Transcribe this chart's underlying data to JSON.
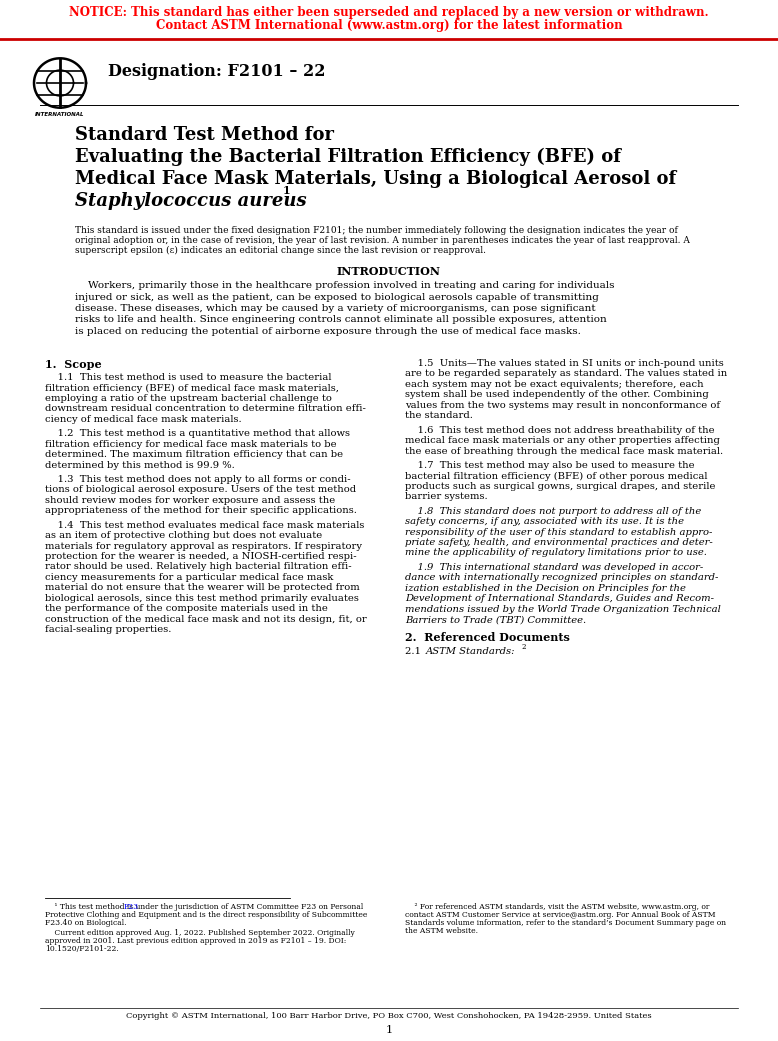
{
  "notice_line1": "NOTICE: This standard has either been superseded and replaced by a new version or withdrawn.",
  "notice_line2": "Contact ASTM International (www.astm.org) for the latest information",
  "notice_color": "#FF0000",
  "designation": "Designation: F2101 – 22",
  "title_line1": "Standard Test Method for",
  "title_line2": "Evaluating the Bacterial Filtration Efficiency (BFE) of",
  "title_line3": "Medical Face Mask Materials, Using a Biological Aerosol of",
  "title_line4_italic": "Staphylococcus aureus",
  "title_line4_super": "1",
  "preamble": "This standard is issued under the fixed designation F2101; the number immediately following the designation indicates the year of\noriginal adoption or, in the case of revision, the year of last revision. A number in parentheses indicates the year of last reapproval. A\nsuperscript epsilon (ε) indicates an editorial change since the last revision or reapproval.",
  "intro_heading": "INTRODUCTION",
  "intro_text": "    Workers, primarily those in the healthcare profession involved in treating and caring for individuals\ninjured or sick, as well as the patient, can be exposed to biological aerosols capable of transmitting\ndisease. These diseases, which may be caused by a variety of microorganisms, can pose significant\nrisks to life and health. Since engineering controls cannot eliminate all possible exposures, attention\nis placed on reducing the potential of airborne exposure through the use of medical face masks.",
  "col1_heading": "1.  Scope",
  "col1_p1": "    1.1  This test method is used to measure the bacterial\nfiltration efficiency (BFE) of medical face mask materials,\nemploying a ratio of the upstream bacterial challenge to\ndownstream residual concentration to determine filtration effi-\nciency of medical face mask materials.",
  "col1_p2": "    1.2  This test method is a quantitative method that allows\nfiltration efficiency for medical face mask materials to be\ndetermined. The maximum filtration efficiency that can be\ndetermined by this method is 99.9 %.",
  "col1_p3": "    1.3  This test method does not apply to all forms or condi-\ntions of biological aerosol exposure. Users of the test method\nshould review modes for worker exposure and assess the\nappropriateness of the method for their specific applications.",
  "col1_p4": "    1.4  This test method evaluates medical face mask materials\nas an item of protective clothing but does not evaluate\nmaterials for regulatory approval as respirators. If respiratory\nprotection for the wearer is needed, a NIOSH-certified respi-\nrator should be used. Relatively high bacterial filtration effi-\nciency measurements for a particular medical face mask\nmaterial do not ensure that the wearer will be protected from\nbiological aerosols, since this test method primarily evaluates\nthe performance of the composite materials used in the\nconstruction of the medical face mask and not its design, fit, or\nfacial-sealing properties.",
  "col2_p5": "    1.5  Units—The values stated in SI units or inch-pound units\nare to be regarded separately as standard. The values stated in\neach system may not be exact equivalents; therefore, each\nsystem shall be used independently of the other. Combining\nvalues from the two systems may result in nonconformance of\nthe standard.",
  "col2_p6": "    1.6  This test method does not address breathability of the\nmedical face mask materials or any other properties affecting\nthe ease of breathing through the medical face mask material.",
  "col2_p7": "    1.7  This test method may also be used to measure the\nbacterial filtration efficiency (BFE) of other porous medical\nproducts such as surgical gowns, surgical drapes, and sterile\nbarrier systems.",
  "col2_p8_italic": "    1.8  This standard does not purport to address all of the\nsafety concerns, if any, associated with its use. It is the\nresponsibility of the user of this standard to establish appro-\npriate safety, health, and environmental practices and deter-\nmine the applicability of regulatory limitations prior to use.",
  "col2_p9_italic": "    1.9  This international standard was developed in accor-\ndance with internationally recognized principles on standard-\nization established in the Decision on Principles for the\nDevelopment of International Standards, Guides and Recom-\nmendations issued by the World Trade Organization Technical\nBarriers to Trade (TBT) Committee.",
  "sec2_heading": "2.  Referenced Documents",
  "sec2_p1_italic": "ASTM Standards:",
  "sec2_super": "2",
  "footnote1": "    ¹ This test method is under the jurisdiction of ASTM Committee F23 on Personal\nProtective Clothing and Equipment and is the direct responsibility of Subcommittee\nF23.40 on Biological.",
  "footnote1b": "    Current edition approved Aug. 1, 2022. Published September 2022. Originally\napproved in 2001. Last previous edition approved in 2019 as F2101 – 19. DOI:\n10.1520/F2101-22.",
  "footnote2": "    ² For referenced ASTM standards, visit the ASTM website, www.astm.org, or\ncontact ASTM Customer Service at service@astm.org. For Annual Book of ASTM\nStandards volume information, refer to the standard’s Document Summary page on\nthe ASTM website.",
  "footer": "Copyright © ASTM International, 100 Barr Harbor Drive, PO Box C700, West Conshohocken, PA 19428-2959. United States",
  "page_num": "1",
  "bg_color": "#FFFFFF",
  "text_color": "#000000",
  "link_color": "#0000FF"
}
